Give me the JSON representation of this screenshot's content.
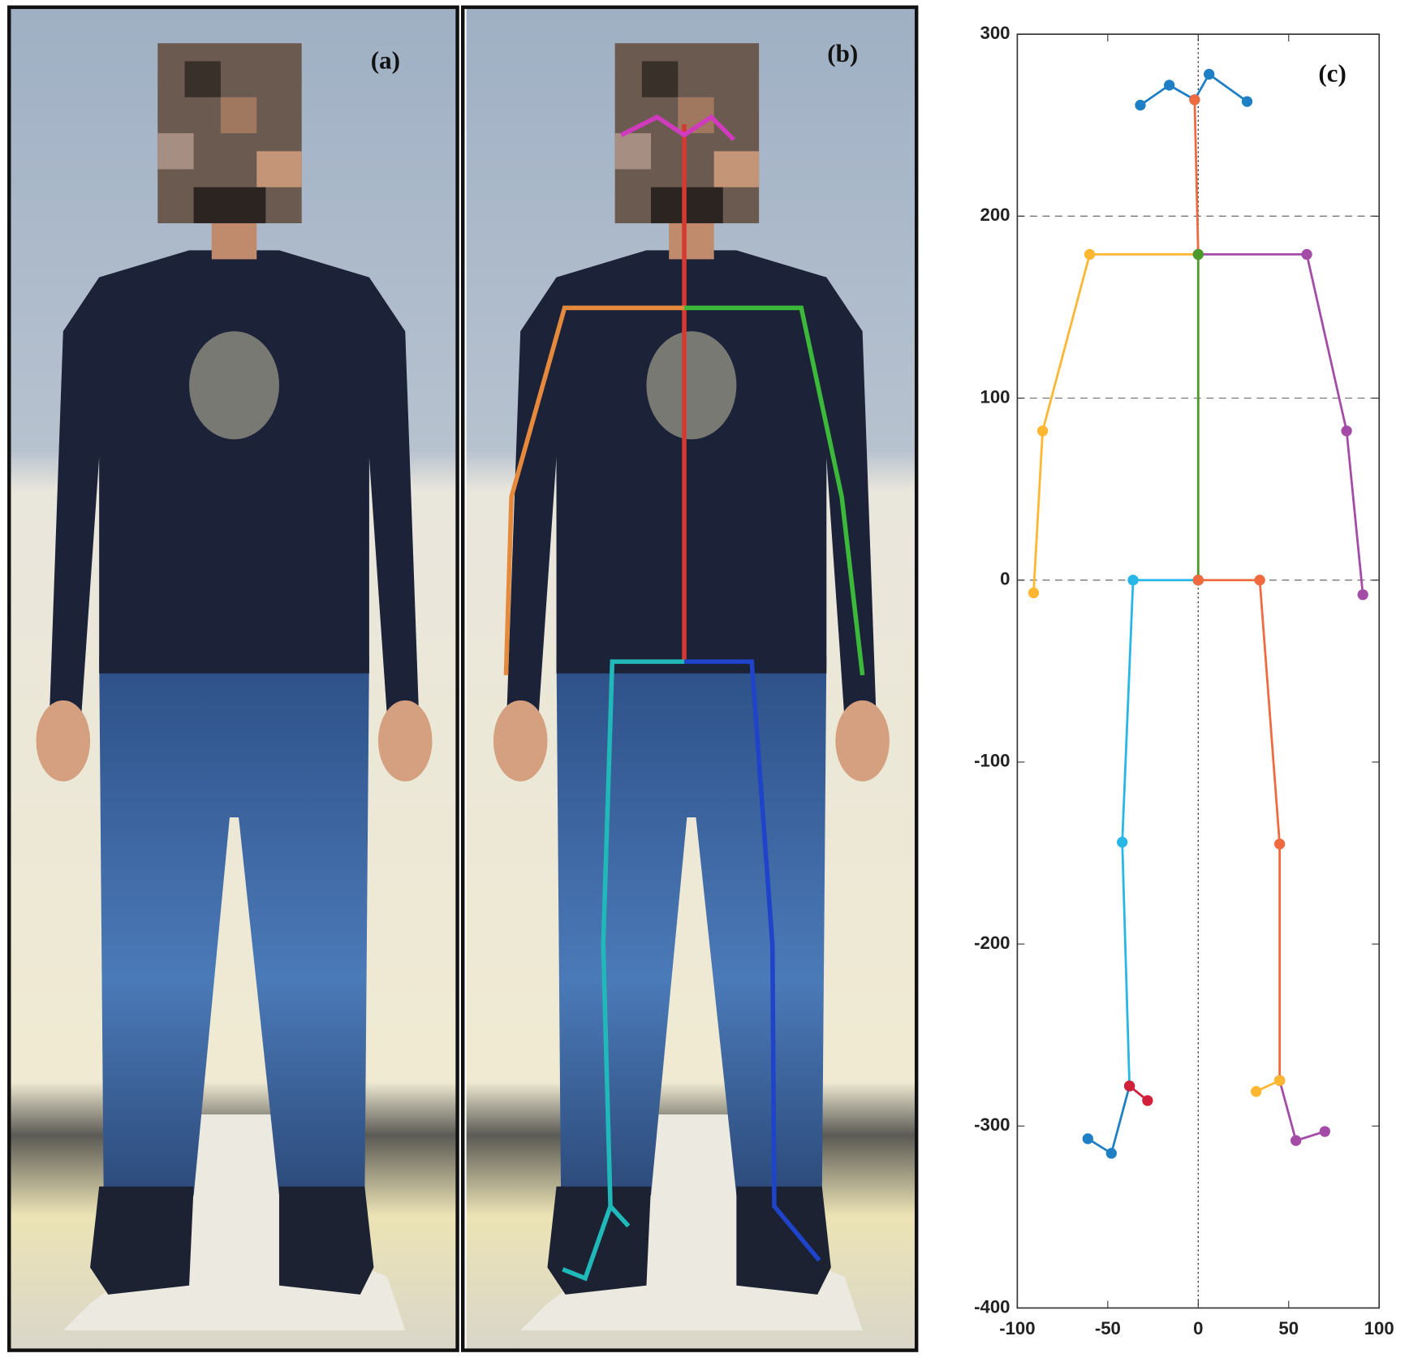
{
  "panels": {
    "a": "(a)",
    "b": "(b)"
  },
  "chart_data": {
    "type": "line",
    "label": "(c)",
    "xlim": [
      -100,
      100
    ],
    "xticks": [
      -100,
      -50,
      0,
      50,
      100
    ],
    "ylim": [
      -400,
      300
    ],
    "yticks": [
      -400,
      -300,
      -200,
      -100,
      0,
      100,
      200,
      300
    ],
    "dashed_y": [
      0,
      100,
      200
    ],
    "dotted_x": 0,
    "series": [
      {
        "color": "#1f7fc4",
        "x": [
          -32,
          -16,
          -2,
          6,
          27
        ],
        "values": [
          261,
          272,
          264,
          278,
          263
        ]
      },
      {
        "color": "#ef6a3f",
        "x": [
          -2,
          0
        ],
        "values": [
          264,
          179
        ]
      },
      {
        "color": "#ffb630",
        "x": [
          0,
          -60,
          -86,
          -91
        ],
        "values": [
          179,
          179,
          82,
          -7
        ]
      },
      {
        "color": "#a44ba8",
        "x": [
          0,
          60,
          82,
          91
        ],
        "values": [
          179,
          179,
          82,
          -8
        ]
      },
      {
        "color": "#4a9a2c",
        "x": [
          0,
          0
        ],
        "values": [
          179,
          0
        ]
      },
      {
        "color": "#28b6e6",
        "x": [
          0,
          -36,
          -42,
          -38
        ],
        "values": [
          0,
          0,
          -144,
          -278
        ]
      },
      {
        "color": "#ef6a3f",
        "x": [
          0,
          34,
          45,
          45
        ],
        "values": [
          0,
          0,
          -145,
          -275
        ]
      },
      {
        "color": "#1f7fc4",
        "x": [
          -38,
          -48,
          -61
        ],
        "values": [
          -278,
          -315,
          -307
        ]
      },
      {
        "color": "#d0203a",
        "x": [
          -38,
          -28
        ],
        "values": [
          -278,
          -286
        ]
      },
      {
        "color": "#a44ba8",
        "x": [
          45,
          54,
          70
        ],
        "values": [
          -275,
          -308,
          -303
        ]
      },
      {
        "color": "#ffb630",
        "x": [
          45,
          32
        ],
        "values": [
          -275,
          -281
        ]
      }
    ]
  }
}
